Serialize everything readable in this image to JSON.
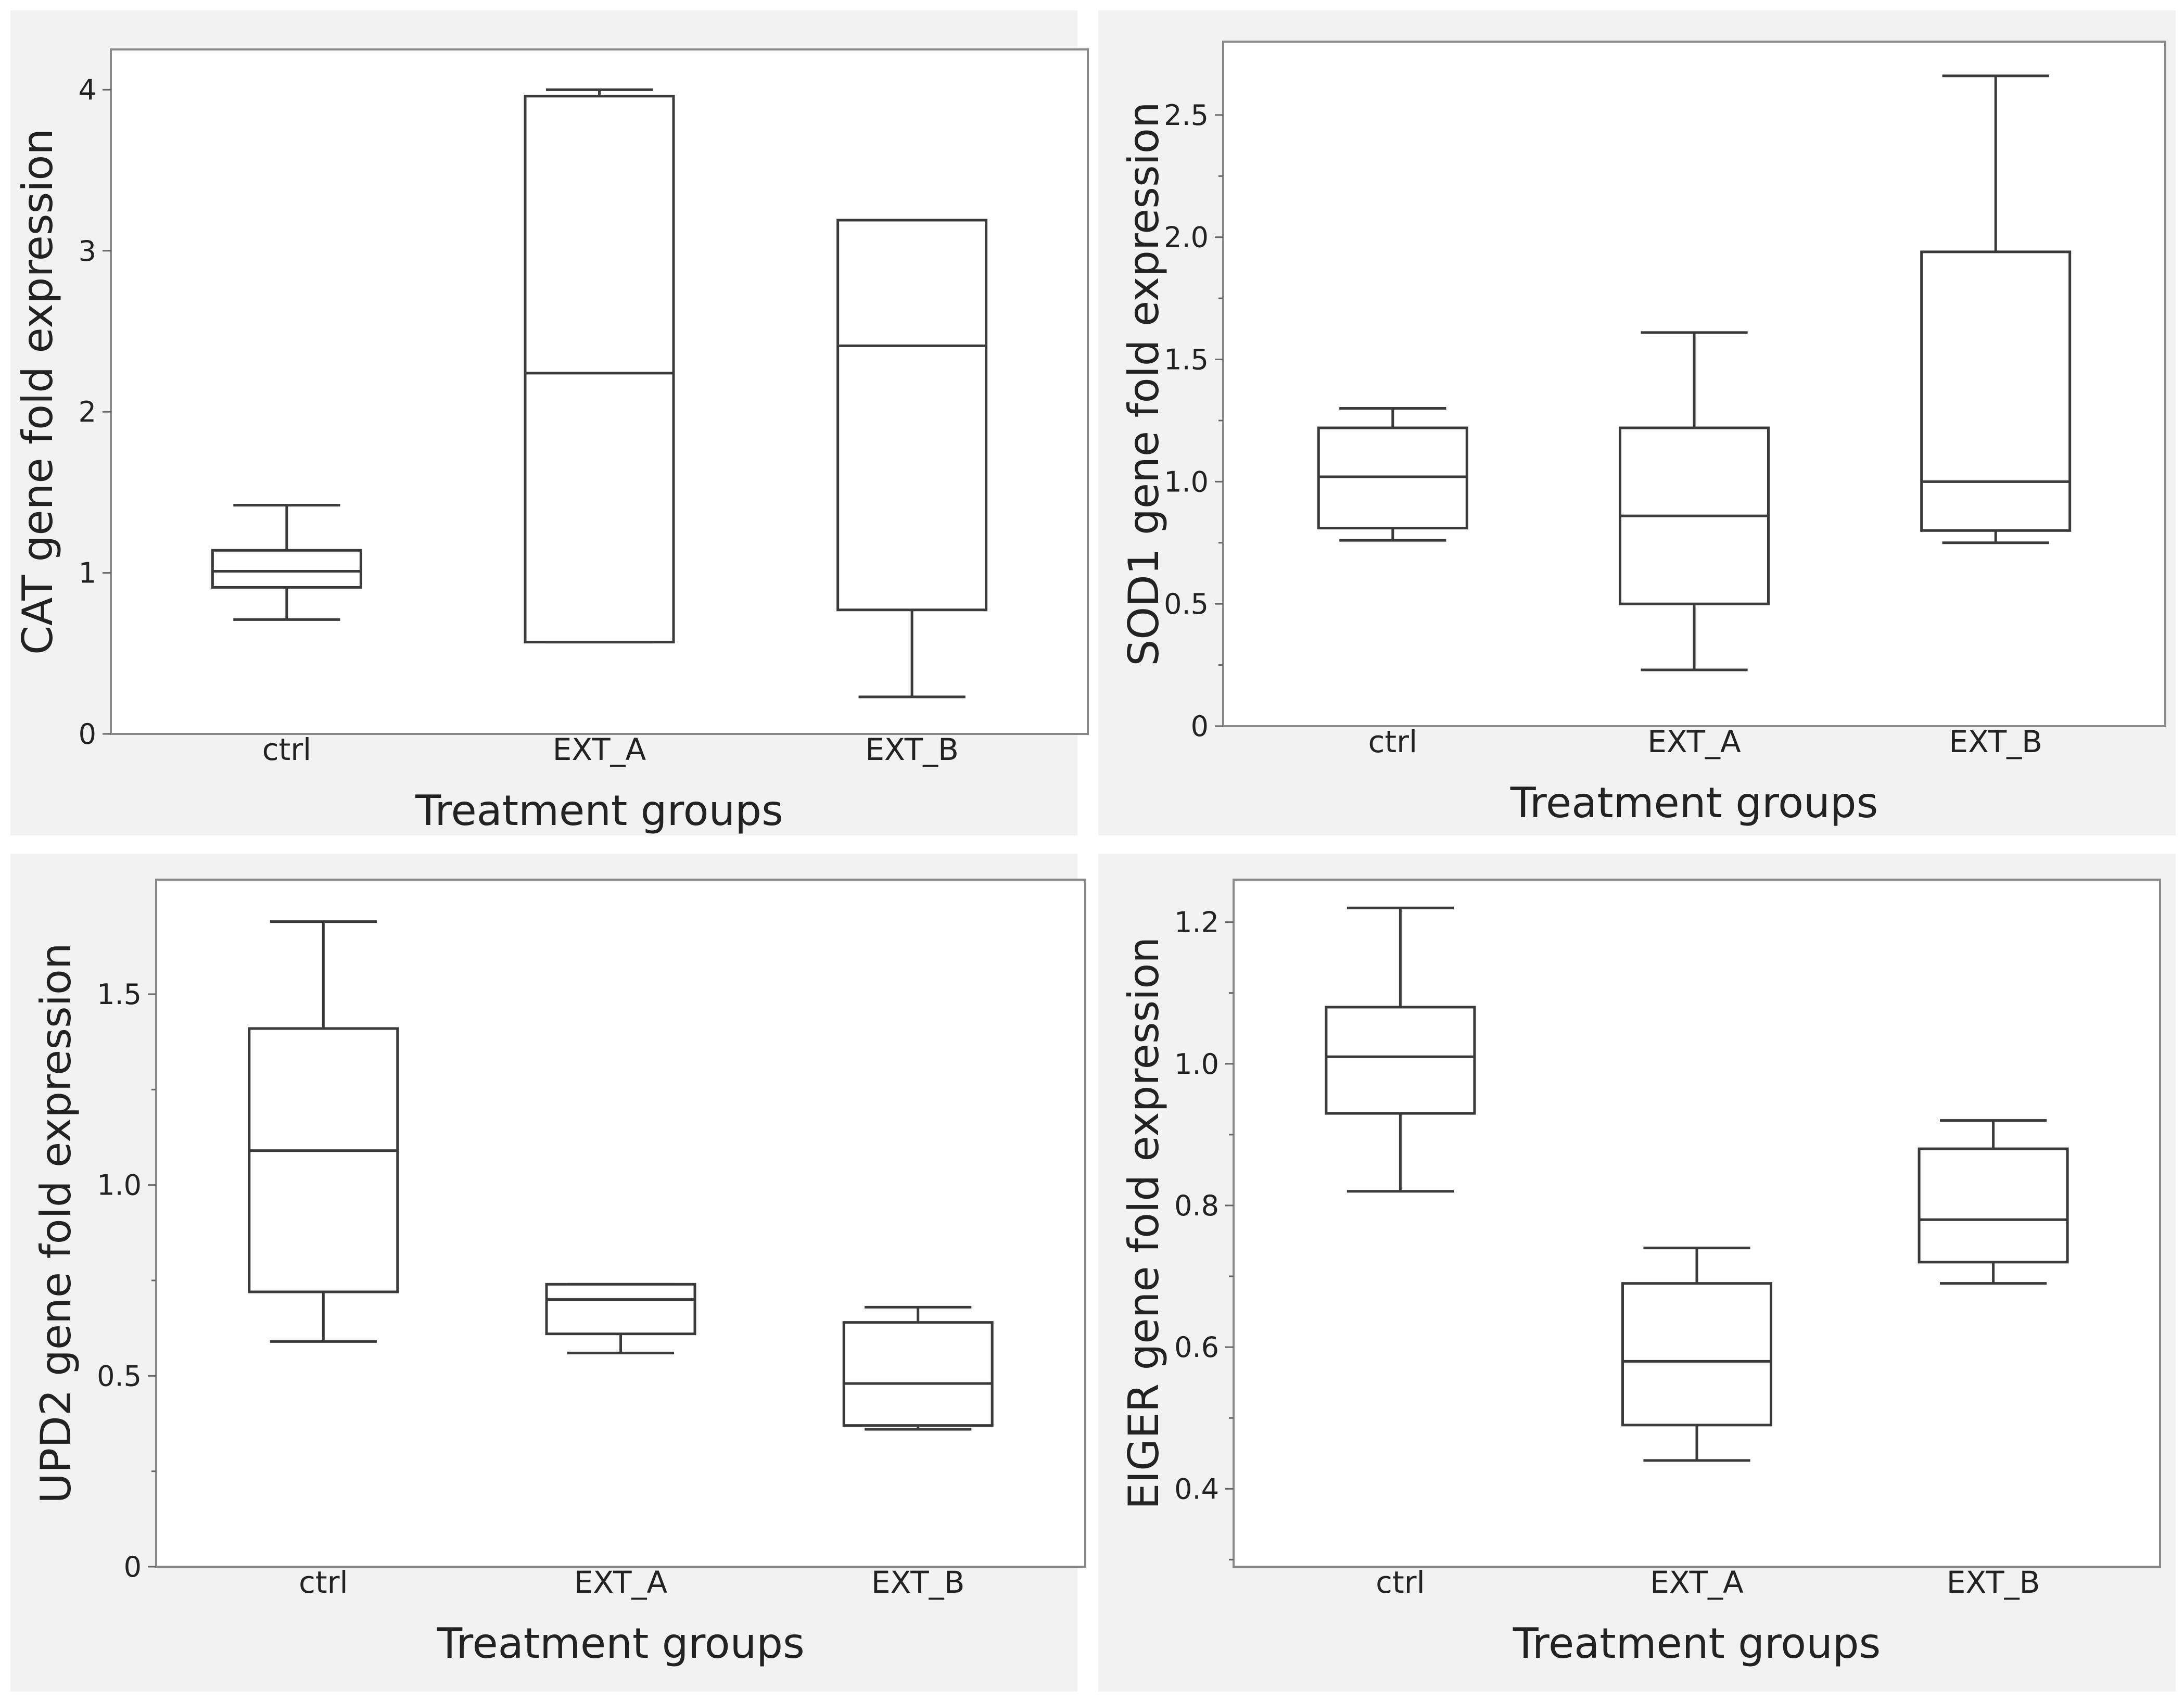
{
  "chart_data": [
    {
      "type": "boxplot",
      "xlabel": "Treatment groups",
      "ylabel": "CAT gene fold expression",
      "ylim": [
        0,
        4.25
      ],
      "yticks": [
        0,
        1,
        2,
        3,
        4
      ],
      "ytick_labels": [
        "0",
        "1",
        "2",
        "3",
        "4"
      ],
      "categories": [
        "ctrl",
        "EXT_A",
        "EXT_B"
      ],
      "boxes": [
        {
          "group": "ctrl",
          "min": 0.71,
          "q1": 0.91,
          "median": 1.01,
          "q3": 1.14,
          "max": 1.42
        },
        {
          "group": "EXT_A",
          "min": 0.57,
          "q1": 0.57,
          "median": 2.24,
          "q3": 3.96,
          "max": 4.0
        },
        {
          "group": "EXT_B",
          "min": 0.23,
          "q1": 0.77,
          "median": 2.41,
          "q3": 3.19,
          "max": 3.19
        }
      ]
    },
    {
      "type": "boxplot",
      "xlabel": "Treatment groups",
      "ylabel": "SOD1 gene fold expression",
      "ylim": [
        0,
        2.8
      ],
      "yticks": [
        0,
        0.5,
        1.0,
        1.5,
        2.0,
        2.5
      ],
      "ytick_labels": [
        "0",
        "0.5",
        "1.0",
        "1.5",
        "2.0",
        "2.5"
      ],
      "minor_ticks": true,
      "categories": [
        "ctrl",
        "EXT_A",
        "EXT_B"
      ],
      "boxes": [
        {
          "group": "ctrl",
          "min": 0.76,
          "q1": 0.81,
          "median": 1.02,
          "q3": 1.22,
          "max": 1.3
        },
        {
          "group": "EXT_A",
          "min": 0.23,
          "q1": 0.5,
          "median": 0.86,
          "q3": 1.22,
          "max": 1.61
        },
        {
          "group": "EXT_B",
          "min": 0.75,
          "q1": 0.8,
          "median": 1.0,
          "q3": 1.94,
          "max": 2.66
        }
      ]
    },
    {
      "type": "boxplot",
      "xlabel": "Treatment groups",
      "ylabel": "UPD2 gene fold expression",
      "ylim": [
        0,
        1.8
      ],
      "yticks": [
        0,
        0.5,
        1.0,
        1.5
      ],
      "ytick_labels": [
        "0",
        "0.5",
        "1.0",
        "1.5"
      ],
      "minor_ticks": true,
      "categories": [
        "ctrl",
        "EXT_A",
        "EXT_B"
      ],
      "boxes": [
        {
          "group": "ctrl",
          "min": 0.59,
          "q1": 0.72,
          "median": 1.09,
          "q3": 1.41,
          "max": 1.69
        },
        {
          "group": "EXT_A",
          "min": 0.56,
          "q1": 0.61,
          "median": 0.7,
          "q3": 0.74,
          "max": 0.74
        },
        {
          "group": "EXT_B",
          "min": 0.36,
          "q1": 0.37,
          "median": 0.48,
          "q3": 0.64,
          "max": 0.68
        }
      ]
    },
    {
      "type": "boxplot",
      "xlabel": "Treatment groups",
      "ylabel": "EIGER gene fold expression",
      "ylim": [
        0.29,
        1.26
      ],
      "yticks": [
        0.4,
        0.6,
        0.8,
        1.0,
        1.2
      ],
      "ytick_labels": [
        "0.4",
        "0.6",
        "0.8",
        "1.0",
        "1.2"
      ],
      "minor_ticks": true,
      "categories": [
        "ctrl",
        "EXT_A",
        "EXT_B"
      ],
      "boxes": [
        {
          "group": "ctrl",
          "min": 0.82,
          "q1": 0.93,
          "median": 1.01,
          "q3": 1.08,
          "max": 1.22
        },
        {
          "group": "EXT_A",
          "min": 0.44,
          "q1": 0.49,
          "median": 0.58,
          "q3": 0.69,
          "max": 0.74
        },
        {
          "group": "EXT_B",
          "min": 0.69,
          "q1": 0.72,
          "median": 0.78,
          "q3": 0.88,
          "max": 0.92
        }
      ]
    }
  ]
}
